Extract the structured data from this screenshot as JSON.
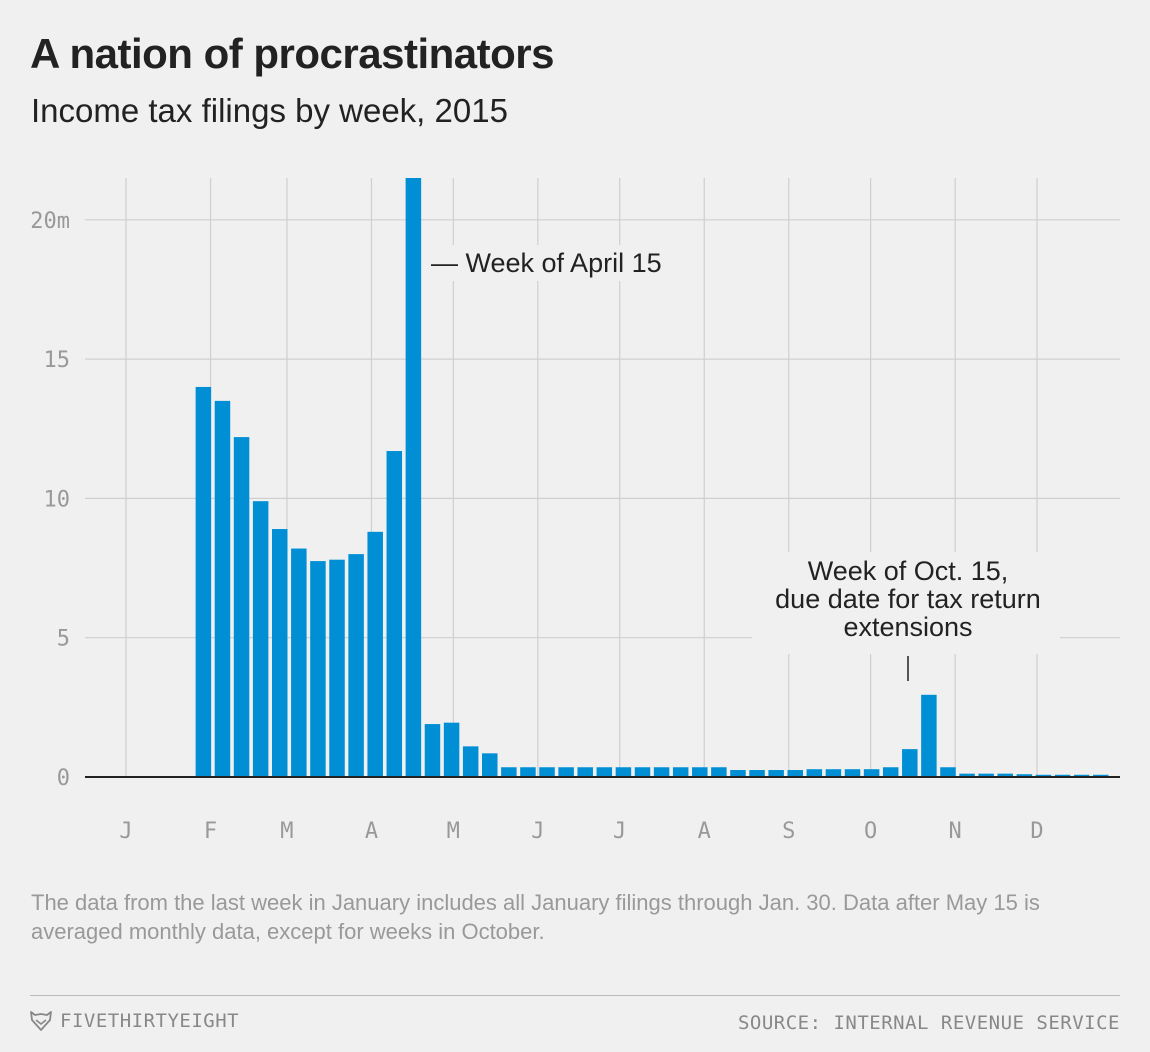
{
  "header": {
    "title": "A nation of procrastinators",
    "subtitle": "Income tax filings by week, 2015"
  },
  "chart_data": {
    "type": "bar",
    "title": "A nation of procrastinators",
    "subtitle": "Income tax filings by week, 2015",
    "xlabel": "",
    "ylabel": "",
    "ylim": [
      0,
      21.5
    ],
    "y_ticks": [
      0,
      5,
      10,
      15,
      20
    ],
    "y_tick_labels": [
      "0",
      "5",
      "10",
      "15",
      "20m"
    ],
    "x_range_days": [
      0,
      365
    ],
    "month_start_days": [
      0,
      31,
      59,
      90,
      120,
      151,
      181,
      212,
      243,
      273,
      304,
      334
    ],
    "month_labels": [
      "J",
      "F",
      "M",
      "A",
      "M",
      "J",
      "J",
      "A",
      "S",
      "O",
      "N",
      "D"
    ],
    "grid": true,
    "bar_color": "#008fd5",
    "series": [
      {
        "name": "Income tax filings (millions)",
        "bars": [
          {
            "day": 28,
            "value": 14.0
          },
          {
            "day": 35,
            "value": 13.5
          },
          {
            "day": 42,
            "value": 12.2
          },
          {
            "day": 49,
            "value": 9.9
          },
          {
            "day": 56,
            "value": 8.9
          },
          {
            "day": 63,
            "value": 8.2
          },
          {
            "day": 70,
            "value": 7.75
          },
          {
            "day": 77,
            "value": 7.8
          },
          {
            "day": 84,
            "value": 8.0
          },
          {
            "day": 91,
            "value": 8.8
          },
          {
            "day": 98,
            "value": 11.7
          },
          {
            "day": 105,
            "value": 21.5
          },
          {
            "day": 112,
            "value": 1.9
          },
          {
            "day": 119,
            "value": 1.95
          },
          {
            "day": 126,
            "value": 1.1
          },
          {
            "day": 133,
            "value": 0.85
          },
          {
            "day": 140,
            "value": 0.35
          },
          {
            "day": 147,
            "value": 0.35
          },
          {
            "day": 154,
            "value": 0.35
          },
          {
            "day": 161,
            "value": 0.35
          },
          {
            "day": 168,
            "value": 0.35
          },
          {
            "day": 175,
            "value": 0.35
          },
          {
            "day": 182,
            "value": 0.35
          },
          {
            "day": 189,
            "value": 0.35
          },
          {
            "day": 196,
            "value": 0.35
          },
          {
            "day": 203,
            "value": 0.35
          },
          {
            "day": 210,
            "value": 0.35
          },
          {
            "day": 217,
            "value": 0.35
          },
          {
            "day": 224,
            "value": 0.25
          },
          {
            "day": 231,
            "value": 0.25
          },
          {
            "day": 238,
            "value": 0.25
          },
          {
            "day": 245,
            "value": 0.25
          },
          {
            "day": 252,
            "value": 0.28
          },
          {
            "day": 259,
            "value": 0.28
          },
          {
            "day": 266,
            "value": 0.28
          },
          {
            "day": 273,
            "value": 0.28
          },
          {
            "day": 280,
            "value": 0.35
          },
          {
            "day": 287,
            "value": 1.0
          },
          {
            "day": 294,
            "value": 2.95
          },
          {
            "day": 301,
            "value": 0.35
          },
          {
            "day": 308,
            "value": 0.12
          },
          {
            "day": 315,
            "value": 0.12
          },
          {
            "day": 322,
            "value": 0.12
          },
          {
            "day": 329,
            "value": 0.1
          },
          {
            "day": 336,
            "value": 0.08
          },
          {
            "day": 343,
            "value": 0.08
          },
          {
            "day": 350,
            "value": 0.08
          },
          {
            "day": 357,
            "value": 0.08
          }
        ]
      }
    ],
    "annotations": [
      {
        "id": "april",
        "text_lines": [
          "— Week of April 15"
        ]
      },
      {
        "id": "october",
        "text_lines": [
          "Week of Oct. 15,",
          "due date for tax return",
          "extensions"
        ]
      }
    ]
  },
  "footer": {
    "note": "The data from the last week in January includes all January filings through Jan. 30. Data after May 15 is averaged monthly data, except for weeks in October.",
    "brand": "FIVETHIRTYEIGHT",
    "source": "SOURCE: INTERNAL REVENUE SERVICE"
  }
}
